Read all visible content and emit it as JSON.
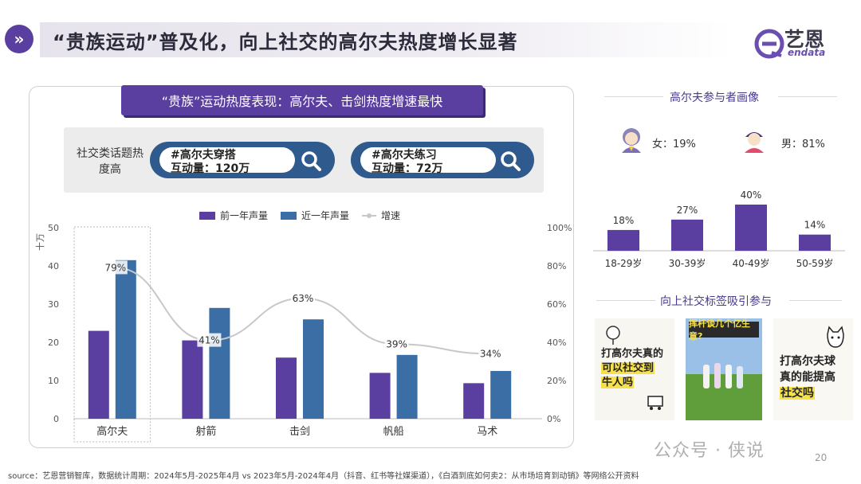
{
  "header": {
    "title": "“贵族运动”普及化，向上社交的高尔夫热度增长显著",
    "badge_icon": "double-chevron-right-icon"
  },
  "logo": {
    "cn": "艺恩",
    "en": "endata"
  },
  "left_panel": {
    "title": "“贵族”运动热度表现：高尔夫、击剑热度增速最快",
    "topic_label": "社交类话题热度高",
    "pills": [
      {
        "tag": "#高尔夫穿搭",
        "metric": "互动量：120万",
        "icon": "search-icon"
      },
      {
        "tag": "#高尔夫练习",
        "metric": "互动量：72万",
        "icon": "search-icon"
      }
    ]
  },
  "chart_data": {
    "type": "bar",
    "categories": [
      "高尔夫",
      "射箭",
      "击剑",
      "帆船",
      "马术"
    ],
    "series": [
      {
        "name": "前一年声量",
        "values": [
          23,
          20.5,
          16,
          12,
          9.3
        ],
        "color": "#5a3fa0"
      },
      {
        "name": "近一年声量",
        "values": [
          41.5,
          29,
          26,
          16.7,
          12.5
        ],
        "color": "#3a6ea5"
      }
    ],
    "line": {
      "name": "增速",
      "values": [
        79,
        41,
        63,
        39,
        34
      ],
      "labels": [
        "79%",
        "41%",
        "63%",
        "39%",
        "34%"
      ],
      "color": "#c8c8c8"
    },
    "ylabel": "十万",
    "ylim": [
      0,
      50
    ],
    "yticks": [
      "0",
      "10",
      "20",
      "30",
      "40",
      "50"
    ],
    "y2lim": [
      0,
      100
    ],
    "y2ticks": [
      "0%",
      "20%",
      "40%",
      "60%",
      "80%",
      "100%"
    ],
    "legend_position": "top",
    "highlighted_category": "高尔夫"
  },
  "right_panel": {
    "portrait_title": "高尔夫参与者画像",
    "gender": [
      {
        "label": "女：19%",
        "icon": "female-avatar-icon"
      },
      {
        "label": "男：81%",
        "icon": "male-avatar-icon"
      }
    ],
    "age_chart": {
      "type": "bar",
      "categories": [
        "18-29岁",
        "30-39岁",
        "40-49岁",
        "50-59岁"
      ],
      "values": [
        18,
        27,
        40,
        14
      ],
      "labels": [
        "18%",
        "27%",
        "40%",
        "14%"
      ],
      "color": "#5a3fa0"
    },
    "social_title": "向上社交标签吸引参与",
    "images": [
      {
        "lines": [
          "打高尔夫真的",
          "可以社交到",
          "牛人吗"
        ],
        "highlight": "社交到"
      },
      {
        "banner": "挥杆谈几个亿生意?"
      },
      {
        "lines": [
          "打高尔夫球",
          "真的能提高",
          "社交吗"
        ],
        "highlight": "社交吗"
      }
    ]
  },
  "footer": {
    "source": "source：艺恩营销智库，数据统计周期：2024年5月-2025年4月 vs 2023年5月-2024年4月（抖音、红书等社媒渠道），《白酒到底如何卖2：从市场培育到动销》等网络公开资料",
    "watermark": "公众号 · 侠说",
    "page": "20"
  }
}
